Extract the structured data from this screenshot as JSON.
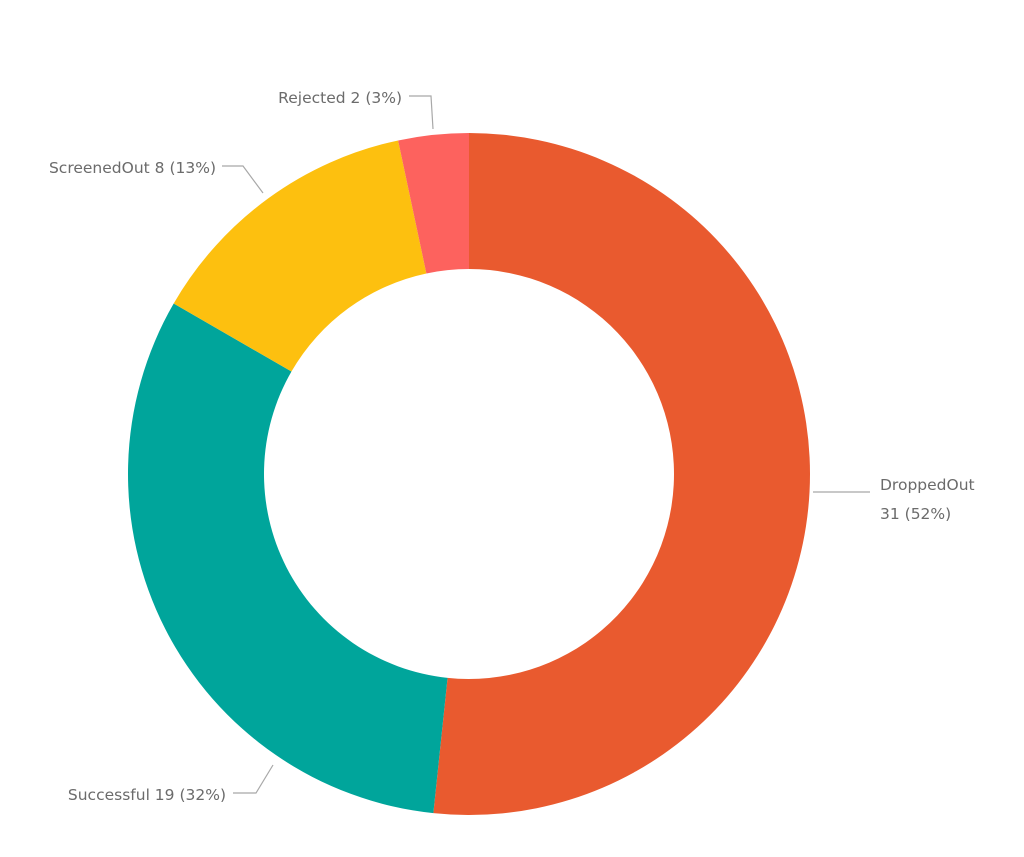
{
  "chart_data": {
    "type": "pie",
    "donut": true,
    "title": "",
    "slices": [
      {
        "label": "DroppedOut",
        "value": 31,
        "percent": 52,
        "color": "#E95A2F",
        "label_text": "DroppedOut",
        "label_text_2": "31 (52%)"
      },
      {
        "label": "Successful",
        "value": 19,
        "percent": 32,
        "color": "#00A59B",
        "label_text": "Successful 19 (32%)"
      },
      {
        "label": "ScreenedOut",
        "value": 8,
        "percent": 13,
        "color": "#FDC00F",
        "label_text": "ScreenedOut 8 (13%)"
      },
      {
        "label": "Rejected",
        "value": 2,
        "percent": 3,
        "color": "#FD625E",
        "label_text": "Rejected 2 (3%)"
      }
    ],
    "start_angle": "12 o'clock",
    "direction": "clockwise",
    "legend": "none"
  }
}
